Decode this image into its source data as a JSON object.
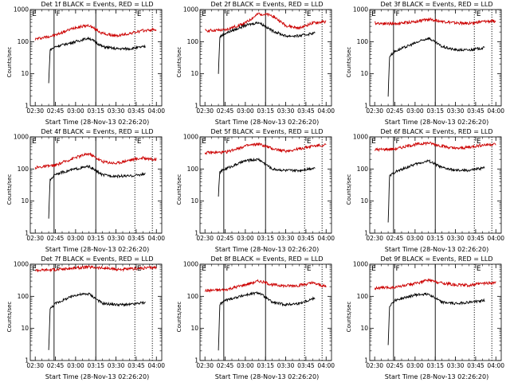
{
  "chart_data": [
    {
      "type": "line",
      "title": "Det 1f BLACK = Events, RED = LLD",
      "xlabel": "Start Time (28-Nov-13 02:26:20)",
      "ylabel": "Counts/sec",
      "yscale": "log",
      "ylim": [
        1,
        1000
      ],
      "yticks": [
        "1",
        "10",
        "100",
        "1000"
      ],
      "xticks": [
        "02:30",
        "02:45",
        "03:00",
        "03:15",
        "03:30",
        "03:45",
        "04:00"
      ],
      "xlim": [
        "02:26:20",
        "04:04:00"
      ],
      "markers": [
        "E",
        "F",
        "E"
      ],
      "solid_lines": [
        "02:44",
        "03:15"
      ],
      "dotted_lines": [
        "03:44",
        "03:57"
      ],
      "series": [
        {
          "color": "#cc0000",
          "start": "02:30",
          "end": "04:00",
          "x": [
            "02:30",
            "02:45",
            "03:00",
            "03:10",
            "03:20",
            "03:30",
            "03:40",
            "03:50",
            "04:00"
          ],
          "y": [
            120,
            160,
            280,
            320,
            180,
            150,
            180,
            220,
            240
          ]
        },
        {
          "color": "#000000",
          "start": "02:40",
          "end": "03:52",
          "x": [
            "02:40",
            "02:41",
            "02:45",
            "03:00",
            "03:10",
            "03:20",
            "03:30",
            "03:40",
            "03:52"
          ],
          "y": [
            5,
            55,
            70,
            100,
            130,
            70,
            60,
            60,
            70
          ]
        }
      ]
    },
    {
      "type": "line",
      "title": "Det 2f BLACK = Events, RED = LLD",
      "xlabel": "Start Time (28-Nov-13 02:26:20)",
      "ylabel": "Counts/sec",
      "yscale": "log",
      "ylim": [
        1,
        1000
      ],
      "yticks": [
        "1",
        "10",
        "100",
        "1000"
      ],
      "xticks": [
        "02:30",
        "02:45",
        "03:00",
        "03:15",
        "03:30",
        "03:45",
        "04:00"
      ],
      "xlim": [
        "02:26:20",
        "04:04:00"
      ],
      "markers": [
        "E",
        "F",
        "E"
      ],
      "solid_lines": [
        "02:44",
        "03:15"
      ],
      "dotted_lines": [
        "03:44",
        "03:57"
      ],
      "series": [
        {
          "color": "#cc0000",
          "start": "02:30",
          "end": "04:00",
          "x": [
            "02:30",
            "02:45",
            "03:00",
            "03:10",
            "03:20",
            "03:30",
            "03:40",
            "03:50",
            "04:00"
          ],
          "y": [
            220,
            230,
            380,
            750,
            650,
            320,
            260,
            380,
            420
          ]
        },
        {
          "color": "#000000",
          "start": "02:40",
          "end": "03:52",
          "x": [
            "02:40",
            "02:41",
            "02:45",
            "03:00",
            "03:10",
            "03:20",
            "03:30",
            "03:40",
            "03:52"
          ],
          "y": [
            10,
            140,
            180,
            320,
            400,
            220,
            150,
            150,
            190
          ]
        }
      ]
    },
    {
      "type": "line",
      "title": "Det 3f BLACK = Events, RED = LLD",
      "xlabel": "Start Time (28-Nov-13 02:26:20)",
      "ylabel": "Counts/sec",
      "yscale": "log",
      "ylim": [
        1,
        1000
      ],
      "yticks": [
        "1",
        "10",
        "100",
        "1000"
      ],
      "xticks": [
        "02:30",
        "02:45",
        "03:00",
        "03:15",
        "03:30",
        "03:45",
        "04:00"
      ],
      "xlim": [
        "02:26:20",
        "04:04:00"
      ],
      "markers": [
        "E",
        "F",
        "E"
      ],
      "solid_lines": [
        "02:44",
        "03:15"
      ],
      "dotted_lines": [
        "03:44",
        "03:57"
      ],
      "series": [
        {
          "color": "#cc0000",
          "start": "02:30",
          "end": "04:00",
          "x": [
            "02:30",
            "02:45",
            "03:00",
            "03:10",
            "03:20",
            "03:30",
            "03:40",
            "03:50",
            "04:00"
          ],
          "y": [
            380,
            360,
            420,
            500,
            430,
            380,
            370,
            420,
            440
          ]
        },
        {
          "color": "#000000",
          "start": "02:40",
          "end": "03:52",
          "x": [
            "02:40",
            "02:41",
            "02:45",
            "03:00",
            "03:10",
            "03:20",
            "03:30",
            "03:40",
            "03:52"
          ],
          "y": [
            2,
            35,
            50,
            90,
            130,
            70,
            55,
            55,
            65
          ]
        }
      ]
    },
    {
      "type": "line",
      "title": "Det 4f BLACK = Events, RED = LLD",
      "xlabel": "Start Time (28-Nov-13 02:26:20)",
      "ylabel": "Counts/sec",
      "yscale": "log",
      "ylim": [
        1,
        1000
      ],
      "yticks": [
        "1",
        "10",
        "100",
        "1000"
      ],
      "xticks": [
        "02:30",
        "02:45",
        "03:00",
        "03:15",
        "03:30",
        "03:45",
        "04:00"
      ],
      "xlim": [
        "02:26:20",
        "04:04:00"
      ],
      "markers": [
        "E",
        "F",
        "E"
      ],
      "solid_lines": [
        "02:44",
        "03:15"
      ],
      "dotted_lines": [
        "03:44",
        "03:57"
      ],
      "series": [
        {
          "color": "#cc0000",
          "start": "02:30",
          "end": "04:00",
          "x": [
            "02:30",
            "02:45",
            "03:00",
            "03:10",
            "03:20",
            "03:30",
            "03:40",
            "03:50",
            "04:00"
          ],
          "y": [
            110,
            130,
            230,
            300,
            170,
            150,
            190,
            220,
            200
          ]
        },
        {
          "color": "#000000",
          "start": "02:40",
          "end": "03:52",
          "x": [
            "02:40",
            "02:41",
            "02:45",
            "03:00",
            "03:10",
            "03:20",
            "03:30",
            "03:40",
            "03:52"
          ],
          "y": [
            3,
            45,
            70,
            100,
            120,
            65,
            60,
            60,
            70
          ]
        }
      ]
    },
    {
      "type": "line",
      "title": "Det 5f BLACK = Events, RED = LLD",
      "xlabel": "Start Time (28-Nov-13 02:26:20)",
      "ylabel": "Counts/sec",
      "yscale": "log",
      "ylim": [
        1,
        1000
      ],
      "yticks": [
        "1",
        "10",
        "100",
        "1000"
      ],
      "xticks": [
        "02:30",
        "02:45",
        "03:00",
        "03:15",
        "03:30",
        "03:45",
        "04:00"
      ],
      "xlim": [
        "02:26:20",
        "04:04:00"
      ],
      "markers": [
        "E",
        "F",
        "E"
      ],
      "solid_lines": [
        "02:44",
        "03:15"
      ],
      "dotted_lines": [
        "03:44",
        "03:57"
      ],
      "series": [
        {
          "color": "#cc0000",
          "start": "02:30",
          "end": "04:00",
          "x": [
            "02:30",
            "02:45",
            "03:00",
            "03:10",
            "03:20",
            "03:30",
            "03:40",
            "03:50",
            "04:00"
          ],
          "y": [
            320,
            330,
            520,
            600,
            430,
            360,
            420,
            520,
            560
          ]
        },
        {
          "color": "#000000",
          "start": "02:40",
          "end": "03:52",
          "x": [
            "02:40",
            "02:41",
            "02:45",
            "03:00",
            "03:10",
            "03:20",
            "03:30",
            "03:40",
            "03:52"
          ],
          "y": [
            15,
            80,
            100,
            180,
            200,
            100,
            90,
            90,
            110
          ]
        }
      ]
    },
    {
      "type": "line",
      "title": "Det 6f BLACK = Events, RED = LLD",
      "xlabel": "Start Time (28-Nov-13 02:26:20)",
      "ylabel": "Counts/sec",
      "yscale": "log",
      "ylim": [
        1,
        1000
      ],
      "yticks": [
        "1",
        "10",
        "100",
        "1000"
      ],
      "xticks": [
        "02:30",
        "02:45",
        "03:00",
        "03:15",
        "03:30",
        "03:45",
        "04:00"
      ],
      "xlim": [
        "02:26:20",
        "04:04:00"
      ],
      "markers": [
        "E",
        "F",
        "E"
      ],
      "solid_lines": [
        "02:44",
        "03:15"
      ],
      "dotted_lines": [
        "03:44",
        "03:57"
      ],
      "series": [
        {
          "color": "#cc0000",
          "start": "02:30",
          "end": "04:00",
          "x": [
            "02:30",
            "02:45",
            "03:00",
            "03:10",
            "03:20",
            "03:30",
            "03:40",
            "03:50",
            "04:00"
          ],
          "y": [
            400,
            420,
            580,
            650,
            520,
            430,
            480,
            560,
            600
          ]
        },
        {
          "color": "#000000",
          "start": "02:40",
          "end": "03:52",
          "x": [
            "02:40",
            "02:41",
            "02:45",
            "03:00",
            "03:10",
            "03:20",
            "03:30",
            "03:40",
            "03:52"
          ],
          "y": [
            2,
            60,
            80,
            140,
            180,
            110,
            90,
            90,
            110
          ]
        }
      ]
    },
    {
      "type": "line",
      "title": "Det 7f BLACK = Events, RED = LLD",
      "xlabel": "Start Time (28-Nov-13 02:26:20)",
      "ylabel": "Counts/sec",
      "yscale": "log",
      "ylim": [
        1,
        1000
      ],
      "yticks": [
        "1",
        "10",
        "100",
        "1000"
      ],
      "xticks": [
        "02:30",
        "02:45",
        "03:00",
        "03:15",
        "03:30",
        "03:45",
        "04:00"
      ],
      "xlim": [
        "02:26:20",
        "04:04:00"
      ],
      "markers": [
        "E",
        "F",
        "E"
      ],
      "solid_lines": [
        "02:44",
        "03:15"
      ],
      "dotted_lines": [
        "03:44",
        "03:57"
      ],
      "series": [
        {
          "color": "#cc0000",
          "start": "02:30",
          "end": "04:00",
          "x": [
            "02:30",
            "02:45",
            "03:00",
            "03:10",
            "03:20",
            "03:30",
            "03:40",
            "03:50",
            "04:00"
          ],
          "y": [
            650,
            680,
            760,
            820,
            760,
            690,
            700,
            760,
            800
          ]
        },
        {
          "color": "#000000",
          "start": "02:40",
          "end": "03:52",
          "x": [
            "02:40",
            "02:41",
            "02:45",
            "03:00",
            "03:10",
            "03:20",
            "03:30",
            "03:40",
            "03:52"
          ],
          "y": [
            2,
            40,
            60,
            110,
            120,
            60,
            55,
            55,
            65
          ]
        }
      ]
    },
    {
      "type": "line",
      "title": "Det 8f BLACK = Events, RED = LLD",
      "xlabel": "Start Time (28-Nov-13 02:26:20)",
      "ylabel": "Counts/sec",
      "yscale": "log",
      "ylim": [
        1,
        1000
      ],
      "yticks": [
        "1",
        "10",
        "100",
        "1000"
      ],
      "xticks": [
        "02:30",
        "02:45",
        "03:00",
        "03:15",
        "03:30",
        "03:45",
        "04:00"
      ],
      "xlim": [
        "02:26:20",
        "04:04:00"
      ],
      "markers": [
        "E",
        "F",
        "E"
      ],
      "solid_lines": [
        "02:44",
        "03:15"
      ],
      "dotted_lines": [
        "03:44",
        "03:57"
      ],
      "series": [
        {
          "color": "#cc0000",
          "start": "02:30",
          "end": "04:00",
          "x": [
            "02:30",
            "02:45",
            "03:00",
            "03:10",
            "03:20",
            "03:30",
            "03:40",
            "03:50",
            "04:00"
          ],
          "y": [
            150,
            160,
            230,
            300,
            230,
            210,
            220,
            260,
            200
          ]
        },
        {
          "color": "#000000",
          "start": "02:40",
          "end": "03:52",
          "x": [
            "02:40",
            "02:41",
            "02:45",
            "03:00",
            "03:10",
            "03:20",
            "03:30",
            "03:40",
            "03:52"
          ],
          "y": [
            2,
            55,
            75,
            110,
            130,
            65,
            55,
            60,
            90
          ]
        }
      ]
    },
    {
      "type": "line",
      "title": "Det 9f BLACK = Events, RED = LLD",
      "xlabel": "Start Time (28-Nov-13 02:26:20)",
      "ylabel": "Counts/sec",
      "yscale": "log",
      "ylim": [
        1,
        1000
      ],
      "yticks": [
        "1",
        "10",
        "100",
        "1000"
      ],
      "xticks": [
        "02:30",
        "02:45",
        "03:00",
        "03:15",
        "03:30",
        "03:45",
        "04:00"
      ],
      "xlim": [
        "02:26:20",
        "04:04:00"
      ],
      "markers": [
        "E",
        "F",
        "E"
      ],
      "solid_lines": [
        "02:44",
        "03:15"
      ],
      "dotted_lines": [
        "03:44",
        "03:57"
      ],
      "series": [
        {
          "color": "#cc0000",
          "start": "02:30",
          "end": "04:00",
          "x": [
            "02:30",
            "02:45",
            "03:00",
            "03:10",
            "03:20",
            "03:30",
            "03:40",
            "03:50",
            "04:00"
          ],
          "y": [
            180,
            190,
            250,
            320,
            260,
            230,
            220,
            250,
            270
          ]
        },
        {
          "color": "#000000",
          "start": "02:40",
          "end": "03:52",
          "x": [
            "02:40",
            "02:41",
            "02:45",
            "03:00",
            "03:10",
            "03:20",
            "03:30",
            "03:40",
            "03:52"
          ],
          "y": [
            3,
            50,
            75,
            110,
            120,
            65,
            60,
            65,
            75
          ]
        }
      ]
    }
  ]
}
